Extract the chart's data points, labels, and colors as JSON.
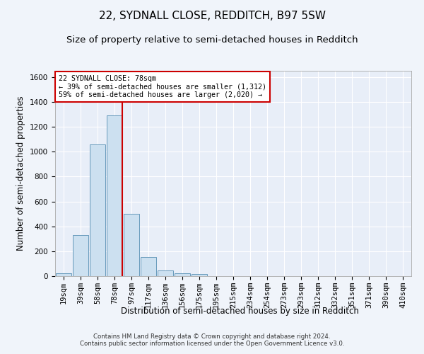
{
  "title": "22, SYDNALL CLOSE, REDDITCH, B97 5SW",
  "subtitle": "Size of property relative to semi-detached houses in Redditch",
  "xlabel": "Distribution of semi-detached houses by size in Redditch",
  "ylabel": "Number of semi-detached properties",
  "categories": [
    "19sqm",
    "39sqm",
    "58sqm",
    "78sqm",
    "97sqm",
    "117sqm",
    "136sqm",
    "156sqm",
    "175sqm",
    "195sqm",
    "215sqm",
    "234sqm",
    "254sqm",
    "273sqm",
    "293sqm",
    "312sqm",
    "332sqm",
    "351sqm",
    "371sqm",
    "390sqm",
    "410sqm"
  ],
  "values": [
    20,
    328,
    1057,
    1293,
    503,
    152,
    46,
    25,
    18,
    0,
    0,
    0,
    0,
    0,
    0,
    0,
    0,
    0,
    0,
    0,
    0
  ],
  "bar_color": "#cce0f0",
  "bar_edge_color": "#6699bb",
  "red_line_index": 3,
  "red_line_color": "#cc0000",
  "annotation_line1": "22 SYDNALL CLOSE: 78sqm",
  "annotation_line2": "← 39% of semi-detached houses are smaller (1,312)",
  "annotation_line3": "59% of semi-detached houses are larger (2,020) →",
  "annotation_box_color": "#ffffff",
  "annotation_box_edge": "#cc0000",
  "ylim": [
    0,
    1650
  ],
  "yticks": [
    0,
    200,
    400,
    600,
    800,
    1000,
    1200,
    1400,
    1600
  ],
  "title_fontsize": 11,
  "subtitle_fontsize": 9.5,
  "axis_label_fontsize": 8.5,
  "tick_fontsize": 7.5,
  "footer": "Contains HM Land Registry data © Crown copyright and database right 2024.\nContains public sector information licensed under the Open Government Licence v3.0.",
  "background_color": "#f0f4fa",
  "plot_background_color": "#e8eef8"
}
